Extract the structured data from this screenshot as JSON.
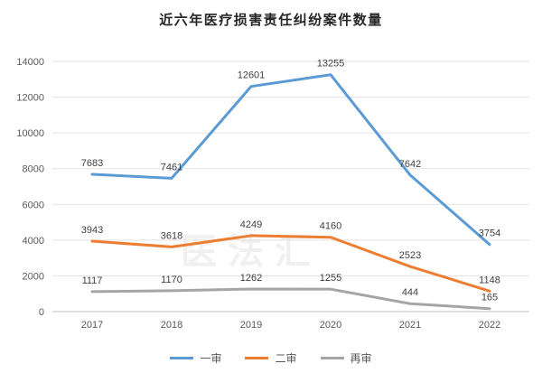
{
  "watermark": "医法汇",
  "chart_data": {
    "type": "line",
    "title": "近六年医疗损害责任纠纷案件数量",
    "categories": [
      "2017",
      "2018",
      "2019",
      "2020",
      "2021",
      "2022"
    ],
    "series": [
      {
        "name": "一审",
        "color": "#5B9BD5",
        "values": [
          7683,
          7461,
          12601,
          13255,
          7642,
          3754
        ]
      },
      {
        "name": "二审",
        "color": "#ED7D31",
        "values": [
          3943,
          3618,
          4249,
          4160,
          2523,
          1148
        ]
      },
      {
        "name": "再审",
        "color": "#A5A5A5",
        "values": [
          1117,
          1170,
          1262,
          1255,
          444,
          165
        ]
      }
    ],
    "xlabel": "",
    "ylabel": "",
    "ylim": [
      0,
      14000
    ],
    "ytick_step": 2000,
    "grid": true,
    "data_labels": true,
    "legend_position": "bottom",
    "colors": {
      "grid": "#E2E2E2",
      "axis": "#BFBFBF",
      "tick_text": "#595959",
      "label_text": "#404040"
    }
  }
}
